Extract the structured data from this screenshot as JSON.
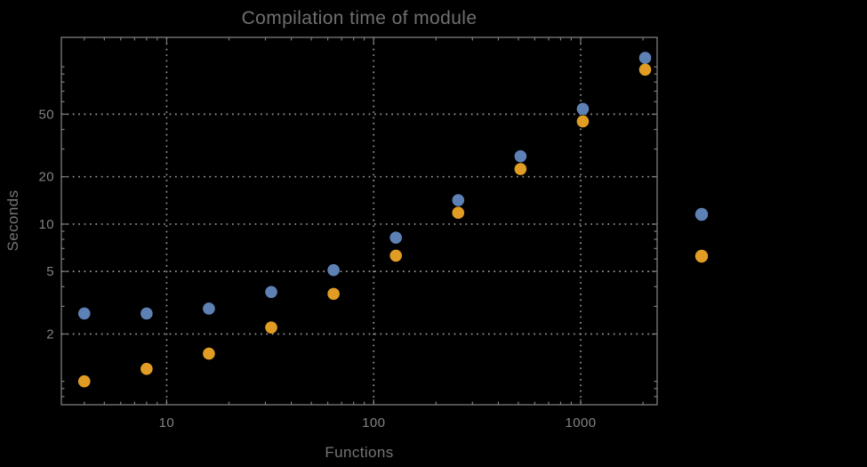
{
  "page": {
    "background": "#000000"
  },
  "style": {
    "frame_color": "#7d7d7d",
    "grid_color": "#969696",
    "title_color": "#6f6f6f",
    "label_color": "#757575",
    "tick_label_color": "#828282"
  },
  "chart_data": {
    "type": "scatter",
    "title": "Compilation time of module",
    "xlabel": "Functions",
    "ylabel": "Seconds",
    "xscale": "log",
    "yscale": "log",
    "xlim": [
      3.1,
      2340
    ],
    "ylim": [
      0.71,
      154
    ],
    "x_ticks": [
      10,
      100,
      1000
    ],
    "x_tick_labels": [
      "10",
      "100",
      "1000"
    ],
    "y_ticks": [
      2,
      5,
      10,
      20,
      50
    ],
    "y_tick_labels": [
      "2",
      "5",
      "10",
      "20",
      "50"
    ],
    "grid": "dotted",
    "grid_on": true,
    "legend_position": "right-outside",
    "legend_labels_visible": false,
    "series": [
      {
        "name": "series-1-blue",
        "color": "#5E81B5",
        "x": [
          4,
          8,
          16,
          32,
          64,
          128,
          256,
          512,
          1024,
          2048
        ],
        "y": [
          2.7,
          2.7,
          2.9,
          3.7,
          5.1,
          8.2,
          14.2,
          27,
          54,
          114
        ]
      },
      {
        "name": "series-2-orange",
        "color": "#E19C24",
        "x": [
          4,
          8,
          16,
          32,
          64,
          128,
          256,
          512,
          1024,
          2048
        ],
        "y": [
          1.0,
          1.2,
          1.5,
          2.2,
          3.6,
          6.3,
          11.8,
          22.4,
          45,
          96
        ]
      }
    ]
  }
}
